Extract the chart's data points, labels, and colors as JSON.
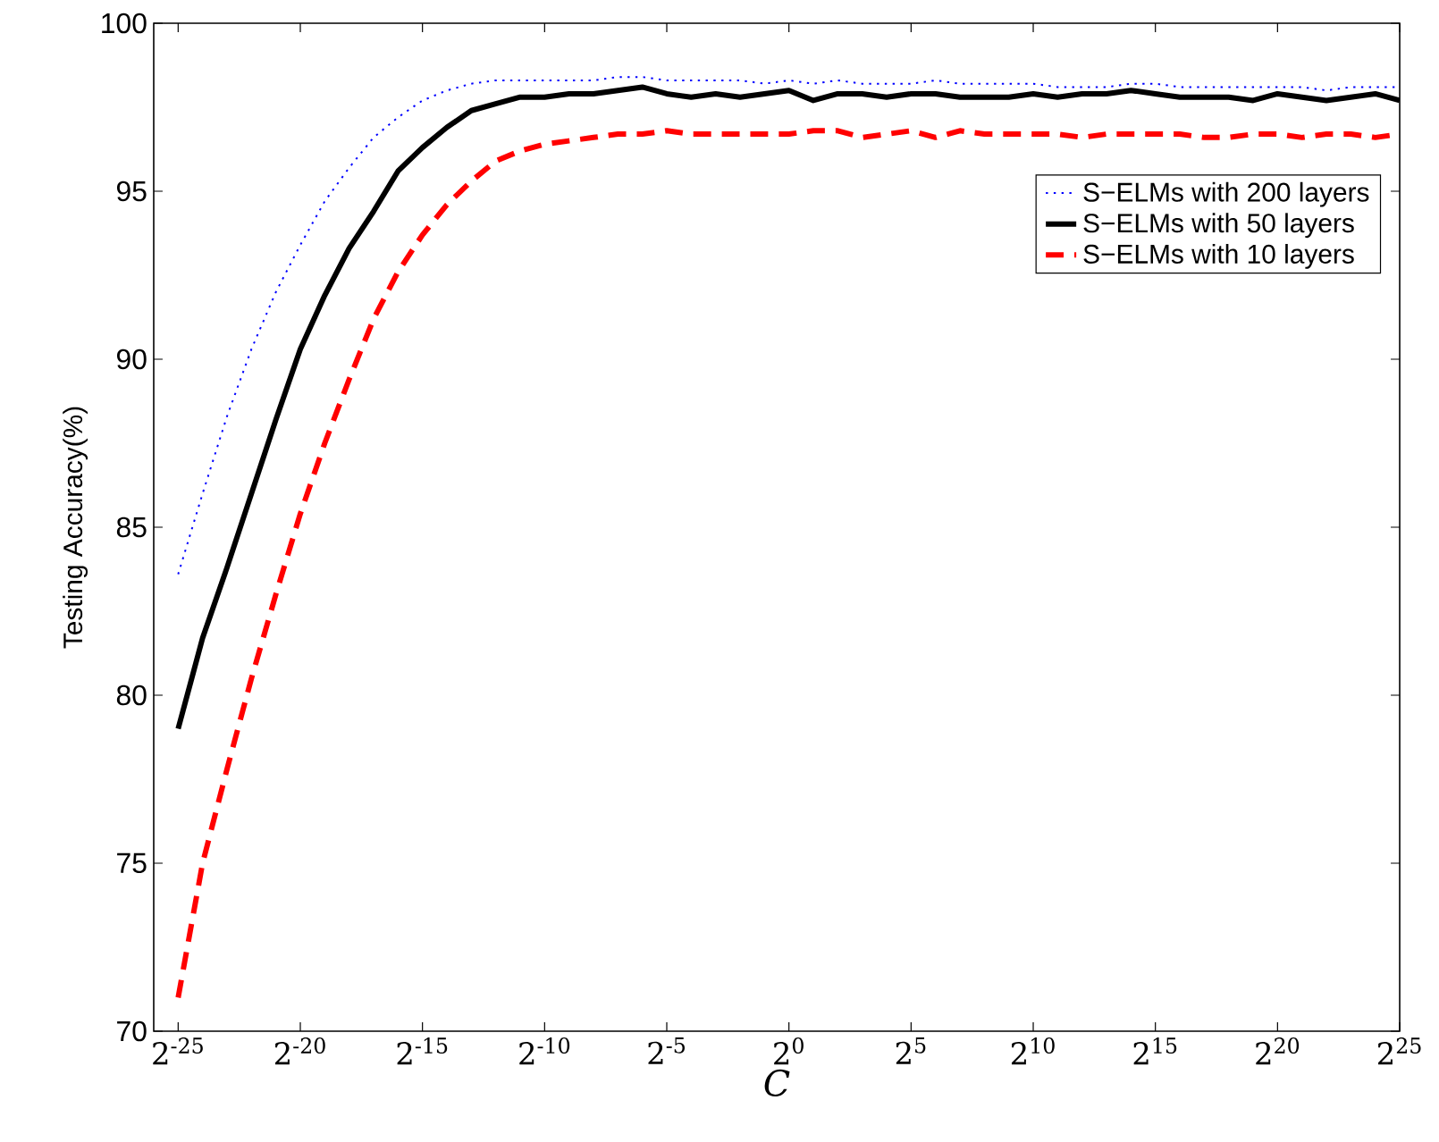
{
  "chart_data": {
    "type": "line",
    "xlabel": "C",
    "ylabel": "Testing Accuracy(%)",
    "x": [
      2.9802322387695312e-08,
      5.960464477539063e-08,
      1.1920928955078125e-07,
      2.384185791015625e-07,
      4.76837158203125e-07,
      9.5367431640625e-07,
      1.9073486328125e-06,
      3.814697265625e-06,
      7.62939453125e-06,
      1.52587890625e-05,
      3.0517578125e-05,
      6.103515625e-05,
      0.0001220703125,
      0.000244140625,
      0.00048828125,
      0.0009765625,
      0.001953125,
      0.00390625,
      0.0078125,
      0.015625,
      0.03125,
      0.0625,
      0.125,
      0.25,
      0.5,
      1,
      2,
      4,
      8,
      16,
      32,
      64,
      128,
      256,
      512,
      1024,
      2048,
      4096,
      8192,
      16384,
      32768,
      65536,
      131072,
      262144,
      524288,
      1048576,
      2097152,
      4194304,
      8388608,
      16777216,
      33554432
    ],
    "xlim": [
      1.4901161193847656e-08,
      33554432
    ],
    "log": "x",
    "xticks": [
      {
        "value": 2.9802322387695312e-08,
        "label": "2$^{-25}$"
      },
      {
        "value": 9.5367431640625e-07,
        "label": "2$^{-20}$"
      },
      {
        "value": 3.0517578125e-05,
        "label": "2$^{-15}$"
      },
      {
        "value": 0.0009765625,
        "label": "2$^{-10}$"
      },
      {
        "value": 0.03125,
        "label": "2$^{-5}$"
      },
      {
        "value": 1,
        "label": "2$^{0}$"
      },
      {
        "value": 32,
        "label": "2$^{5}$"
      },
      {
        "value": 1024,
        "label": "2$^{10}$"
      },
      {
        "value": 32768,
        "label": "2$^{15}$"
      },
      {
        "value": 1048576,
        "label": "2$^{20}$"
      },
      {
        "value": 33554432,
        "label": "2$^{25}$"
      }
    ],
    "ylim": [
      70,
      100
    ],
    "yticks": [
      70,
      75,
      80,
      85,
      90,
      95,
      100
    ],
    "grid": false,
    "legend": "top right",
    "marker": "none",
    "series": [
      {
        "name": "S−ELMs with 200 layers",
        "color": "#0000ff",
        "line_style": "dotted",
        "values": [
          83.6,
          86.0,
          88.3,
          90.3,
          92.0,
          93.4,
          94.7,
          95.7,
          96.6,
          97.2,
          97.7,
          98.0,
          98.2,
          98.3,
          98.3,
          98.3,
          98.3,
          98.3,
          98.4,
          98.4,
          98.3,
          98.3,
          98.3,
          98.3,
          98.2,
          98.3,
          98.2,
          98.3,
          98.2,
          98.2,
          98.2,
          98.3,
          98.2,
          98.2,
          98.2,
          98.2,
          98.1,
          98.1,
          98.1,
          98.2,
          98.2,
          98.1,
          98.1,
          98.1,
          98.1,
          98.1,
          98.1,
          98.0,
          98.1,
          98.1,
          98.1
        ]
      },
      {
        "name": "S−ELMs with 50 layers",
        "color": "#000000",
        "line_style": "solid",
        "values": [
          79.0,
          81.7,
          83.8,
          86.0,
          88.2,
          90.3,
          91.9,
          93.3,
          94.4,
          95.6,
          96.3,
          96.9,
          97.4,
          97.6,
          97.8,
          97.8,
          97.9,
          97.9,
          98.0,
          98.1,
          97.9,
          97.8,
          97.9,
          97.8,
          97.9,
          98.0,
          97.7,
          97.9,
          97.9,
          97.8,
          97.9,
          97.9,
          97.8,
          97.8,
          97.8,
          97.9,
          97.8,
          97.9,
          97.9,
          98.0,
          97.9,
          97.8,
          97.8,
          97.8,
          97.7,
          97.9,
          97.8,
          97.7,
          97.8,
          97.9,
          97.7
        ]
      },
      {
        "name": "S−ELMs with 10 layers",
        "color": "#ff0000",
        "line_style": "dashed",
        "values": [
          71.0,
          75.0,
          77.8,
          80.5,
          83.0,
          85.4,
          87.5,
          89.4,
          91.2,
          92.6,
          93.7,
          94.6,
          95.3,
          95.9,
          96.2,
          96.4,
          96.5,
          96.6,
          96.7,
          96.7,
          96.8,
          96.7,
          96.7,
          96.7,
          96.7,
          96.7,
          96.8,
          96.8,
          96.6,
          96.7,
          96.8,
          96.6,
          96.8,
          96.7,
          96.7,
          96.7,
          96.7,
          96.6,
          96.7,
          96.7,
          96.7,
          96.7,
          96.6,
          96.6,
          96.7,
          96.7,
          96.6,
          96.7,
          96.7,
          96.6,
          96.7
        ]
      }
    ]
  }
}
